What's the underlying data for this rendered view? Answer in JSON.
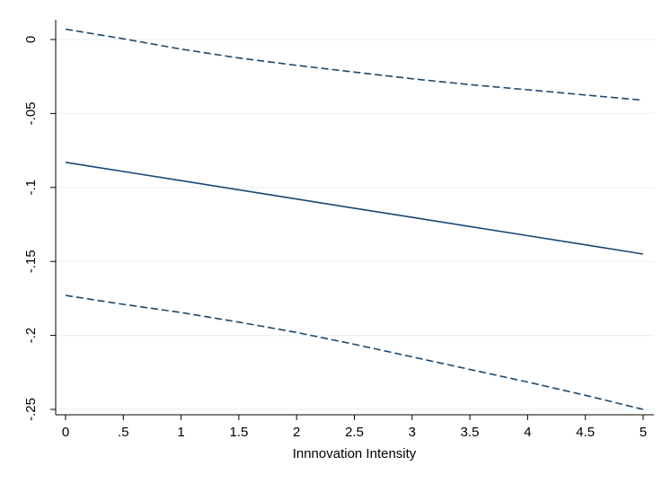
{
  "chart_data": {
    "type": "line",
    "title": "",
    "xlabel": "Innnovation Intensity",
    "ylabel": "",
    "xlim": [
      0,
      5
    ],
    "ylim": [
      -0.25,
      0
    ],
    "grid": "horizontal",
    "legend": "none",
    "x_ticks": [
      {
        "value": 0,
        "label": "0"
      },
      {
        "value": 0.5,
        "label": ".5"
      },
      {
        "value": 1,
        "label": "1"
      },
      {
        "value": 1.5,
        "label": "1.5"
      },
      {
        "value": 2,
        "label": "2"
      },
      {
        "value": 2.5,
        "label": "2.5"
      },
      {
        "value": 3,
        "label": "3"
      },
      {
        "value": 3.5,
        "label": "3.5"
      },
      {
        "value": 4,
        "label": "4"
      },
      {
        "value": 4.5,
        "label": "4.5"
      },
      {
        "value": 5,
        "label": "5"
      }
    ],
    "y_ticks": [
      {
        "value": 0,
        "label": "0"
      },
      {
        "value": -0.05,
        "label": "-.05"
      },
      {
        "value": -0.1,
        "label": "-.1"
      },
      {
        "value": -0.15,
        "label": "-.15"
      },
      {
        "value": -0.2,
        "label": "-.2"
      },
      {
        "value": -0.25,
        "label": "-.25"
      }
    ],
    "x": [
      0,
      0.5,
      1,
      1.5,
      2,
      2.5,
      3,
      3.5,
      4,
      4.5,
      5
    ],
    "series": [
      {
        "style": "dashed",
        "color": "#1a476f",
        "values": [
          0.007,
          0.0005,
          -0.0065,
          -0.0125,
          -0.0175,
          -0.022,
          -0.0265,
          -0.0305,
          -0.034,
          -0.0375,
          -0.041
        ]
      },
      {
        "style": "solid",
        "color": "#1a476f",
        "values": [
          -0.083,
          -0.0892,
          -0.0954,
          -0.1016,
          -0.1078,
          -0.114,
          -0.1202,
          -0.1264,
          -0.1326,
          -0.1388,
          -0.145
        ]
      },
      {
        "style": "dashed",
        "color": "#1a476f",
        "values": [
          -0.173,
          -0.179,
          -0.1845,
          -0.191,
          -0.198,
          -0.206,
          -0.2145,
          -0.223,
          -0.2315,
          -0.2405,
          -0.25
        ]
      }
    ],
    "colors": {
      "grid": "#eaf2f3",
      "axis": "#000000",
      "background": "#ffffff"
    }
  }
}
